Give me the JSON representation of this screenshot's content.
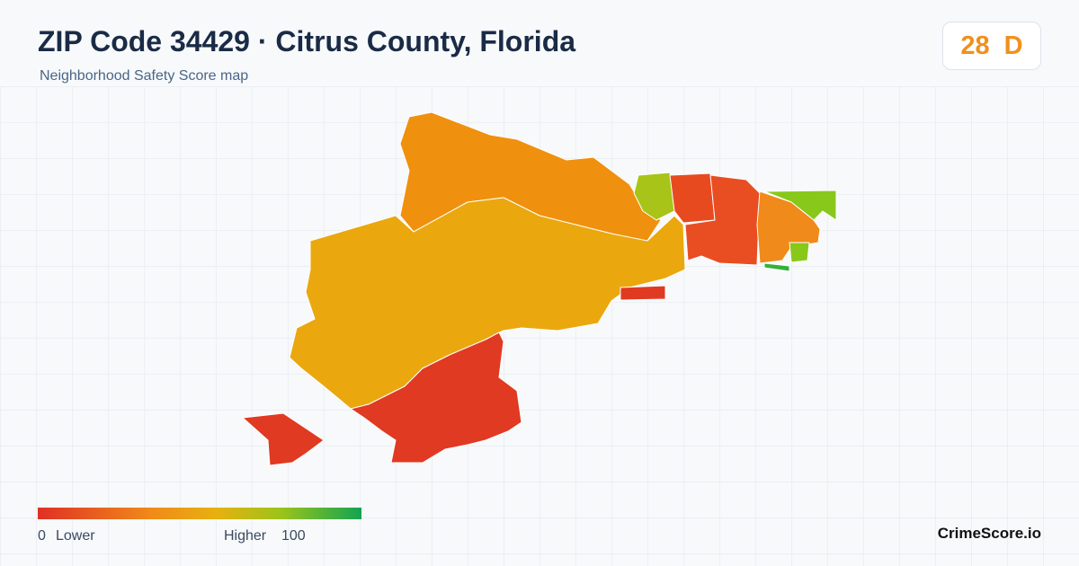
{
  "header": {
    "title": "ZIP Code 34429 · Citrus County, Florida",
    "subtitle": "Neighborhood Safety Score map"
  },
  "score": {
    "value": 28,
    "grade": "D"
  },
  "legend": {
    "min": 0,
    "min_label": "Lower",
    "max_label": "Higher",
    "max": 100
  },
  "brand": "CrimeScore.io"
}
